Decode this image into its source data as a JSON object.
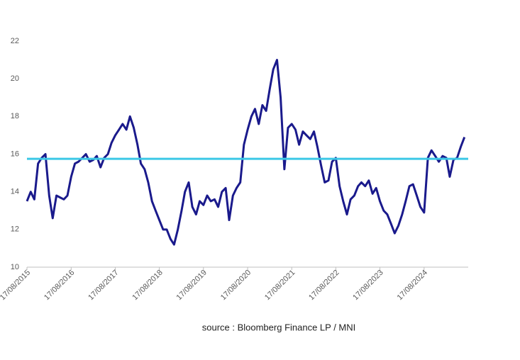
{
  "chart_data": {
    "type": "line",
    "source": "source :  Bloomberg Finance LP / MNI",
    "x": [
      "2015-08-17",
      "2015-09-17",
      "2015-10-17",
      "2015-11-17",
      "2015-12-17",
      "2016-01-17",
      "2016-02-17",
      "2016-03-17",
      "2016-04-17",
      "2016-05-17",
      "2016-06-17",
      "2016-07-17",
      "2016-08-17",
      "2016-09-17",
      "2016-10-17",
      "2016-11-17",
      "2016-12-17",
      "2017-01-17",
      "2017-02-17",
      "2017-03-17",
      "2017-04-17",
      "2017-05-17",
      "2017-06-17",
      "2017-07-17",
      "2017-08-17",
      "2017-09-17",
      "2017-10-17",
      "2017-11-17",
      "2017-12-17",
      "2018-01-17",
      "2018-02-17",
      "2018-03-17",
      "2018-04-17",
      "2018-05-17",
      "2018-06-17",
      "2018-07-17",
      "2018-08-17",
      "2018-09-17",
      "2018-10-17",
      "2018-11-17",
      "2018-12-17",
      "2019-01-17",
      "2019-02-17",
      "2019-03-17",
      "2019-04-17",
      "2019-05-17",
      "2019-06-17",
      "2019-07-17",
      "2019-08-17",
      "2019-09-17",
      "2019-10-17",
      "2019-11-17",
      "2019-12-17",
      "2020-01-17",
      "2020-02-17",
      "2020-03-17",
      "2020-04-17",
      "2020-05-17",
      "2020-06-17",
      "2020-07-17",
      "2020-08-17",
      "2020-09-17",
      "2020-10-17",
      "2020-11-17",
      "2020-12-17",
      "2021-01-17",
      "2021-02-17",
      "2021-03-17",
      "2021-04-17",
      "2021-05-17",
      "2021-06-17",
      "2021-07-17",
      "2021-08-17",
      "2021-09-17",
      "2021-10-17",
      "2021-11-17",
      "2021-12-17",
      "2022-01-17",
      "2022-02-17",
      "2022-03-17",
      "2022-04-17",
      "2022-05-17",
      "2022-06-17",
      "2022-07-17",
      "2022-08-17",
      "2022-09-17",
      "2022-10-17",
      "2022-11-17",
      "2022-12-17",
      "2023-01-17",
      "2023-02-17",
      "2023-03-17",
      "2023-04-17",
      "2023-05-17",
      "2023-06-17",
      "2023-07-17",
      "2023-08-17",
      "2023-09-17",
      "2023-10-17",
      "2023-11-17",
      "2023-12-17",
      "2024-01-17",
      "2024-02-17",
      "2024-03-17",
      "2024-04-17",
      "2024-05-17",
      "2024-06-17",
      "2024-07-17",
      "2024-08-17",
      "2024-09-17",
      "2024-10-17",
      "2024-11-17",
      "2024-12-17",
      "2025-01-17",
      "2025-02-17",
      "2025-03-17",
      "2025-04-17",
      "2025-05-17",
      "2025-06-17",
      "2025-07-17"
    ],
    "series": [
      {
        "color": "#1a1a8c",
        "values": [
          13.5,
          14,
          13.6,
          15.5,
          15.8,
          16,
          13.8,
          12.6,
          13.8,
          13.7,
          13.6,
          13.8,
          14.8,
          15.5,
          15.6,
          15.8,
          16,
          15.6,
          15.7,
          15.9,
          15.3,
          15.8,
          16,
          16.6,
          17,
          17.3,
          17.6,
          17.3,
          18,
          17.4,
          16.5,
          15.5,
          15.2,
          14.5,
          13.5,
          13,
          12.5,
          12,
          12,
          11.5,
          11.2,
          12,
          13,
          14,
          14.5,
          13.2,
          12.8,
          13.5,
          13.3,
          13.8,
          13.5,
          13.6,
          13.2,
          14,
          14.2,
          12.5,
          13.8,
          14.2,
          14.5,
          16.5,
          17.3,
          18,
          18.4,
          17.6,
          18.6,
          18.3,
          19.5,
          20.5,
          21,
          19,
          15.2,
          17.4,
          17.6,
          17.3,
          16.5,
          17.2,
          17,
          16.8,
          17.2,
          16.4,
          15.4,
          14.5,
          14.6,
          15.6,
          15.8,
          14.3,
          13.5,
          12.8,
          13.6,
          13.8,
          14.3,
          14.5,
          14.3,
          14.6,
          13.9,
          14.2,
          13.5,
          13,
          12.8,
          12.3,
          11.8,
          12.2,
          12.8,
          13.5,
          14.3,
          14.4,
          13.8,
          13.2,
          12.9,
          15.8,
          16.2,
          15.9,
          15.6,
          15.9,
          15.8,
          14.8,
          15.7,
          15.8,
          16.4,
          16.9
        ]
      }
    ],
    "reference_line": {
      "value": 15.75,
      "color": "#3cc8e6"
    },
    "xlim": [
      "2015-08-17",
      "2025-08-17"
    ],
    "xticks": [
      {
        "value": "2015-08-17",
        "label": "17/08/2015"
      },
      {
        "value": "2016-08-17",
        "label": "17/08/2016"
      },
      {
        "value": "2017-08-17",
        "label": "17/08/2017"
      },
      {
        "value": "2018-08-17",
        "label": "17/08/2018"
      },
      {
        "value": "2019-08-17",
        "label": "17/08/2019"
      },
      {
        "value": "2020-08-17",
        "label": "17/08/2020"
      },
      {
        "value": "2021-08-17",
        "label": "17/08/2021"
      },
      {
        "value": "2022-08-17",
        "label": "17/08/2022"
      },
      {
        "value": "2023-08-17",
        "label": "17/08/2023"
      },
      {
        "value": "2024-08-17",
        "label": "17/08/2024"
      }
    ],
    "ylim": [
      10,
      22
    ],
    "yticks": [
      10,
      12,
      14,
      16,
      18,
      20,
      22
    ],
    "grid": false
  }
}
